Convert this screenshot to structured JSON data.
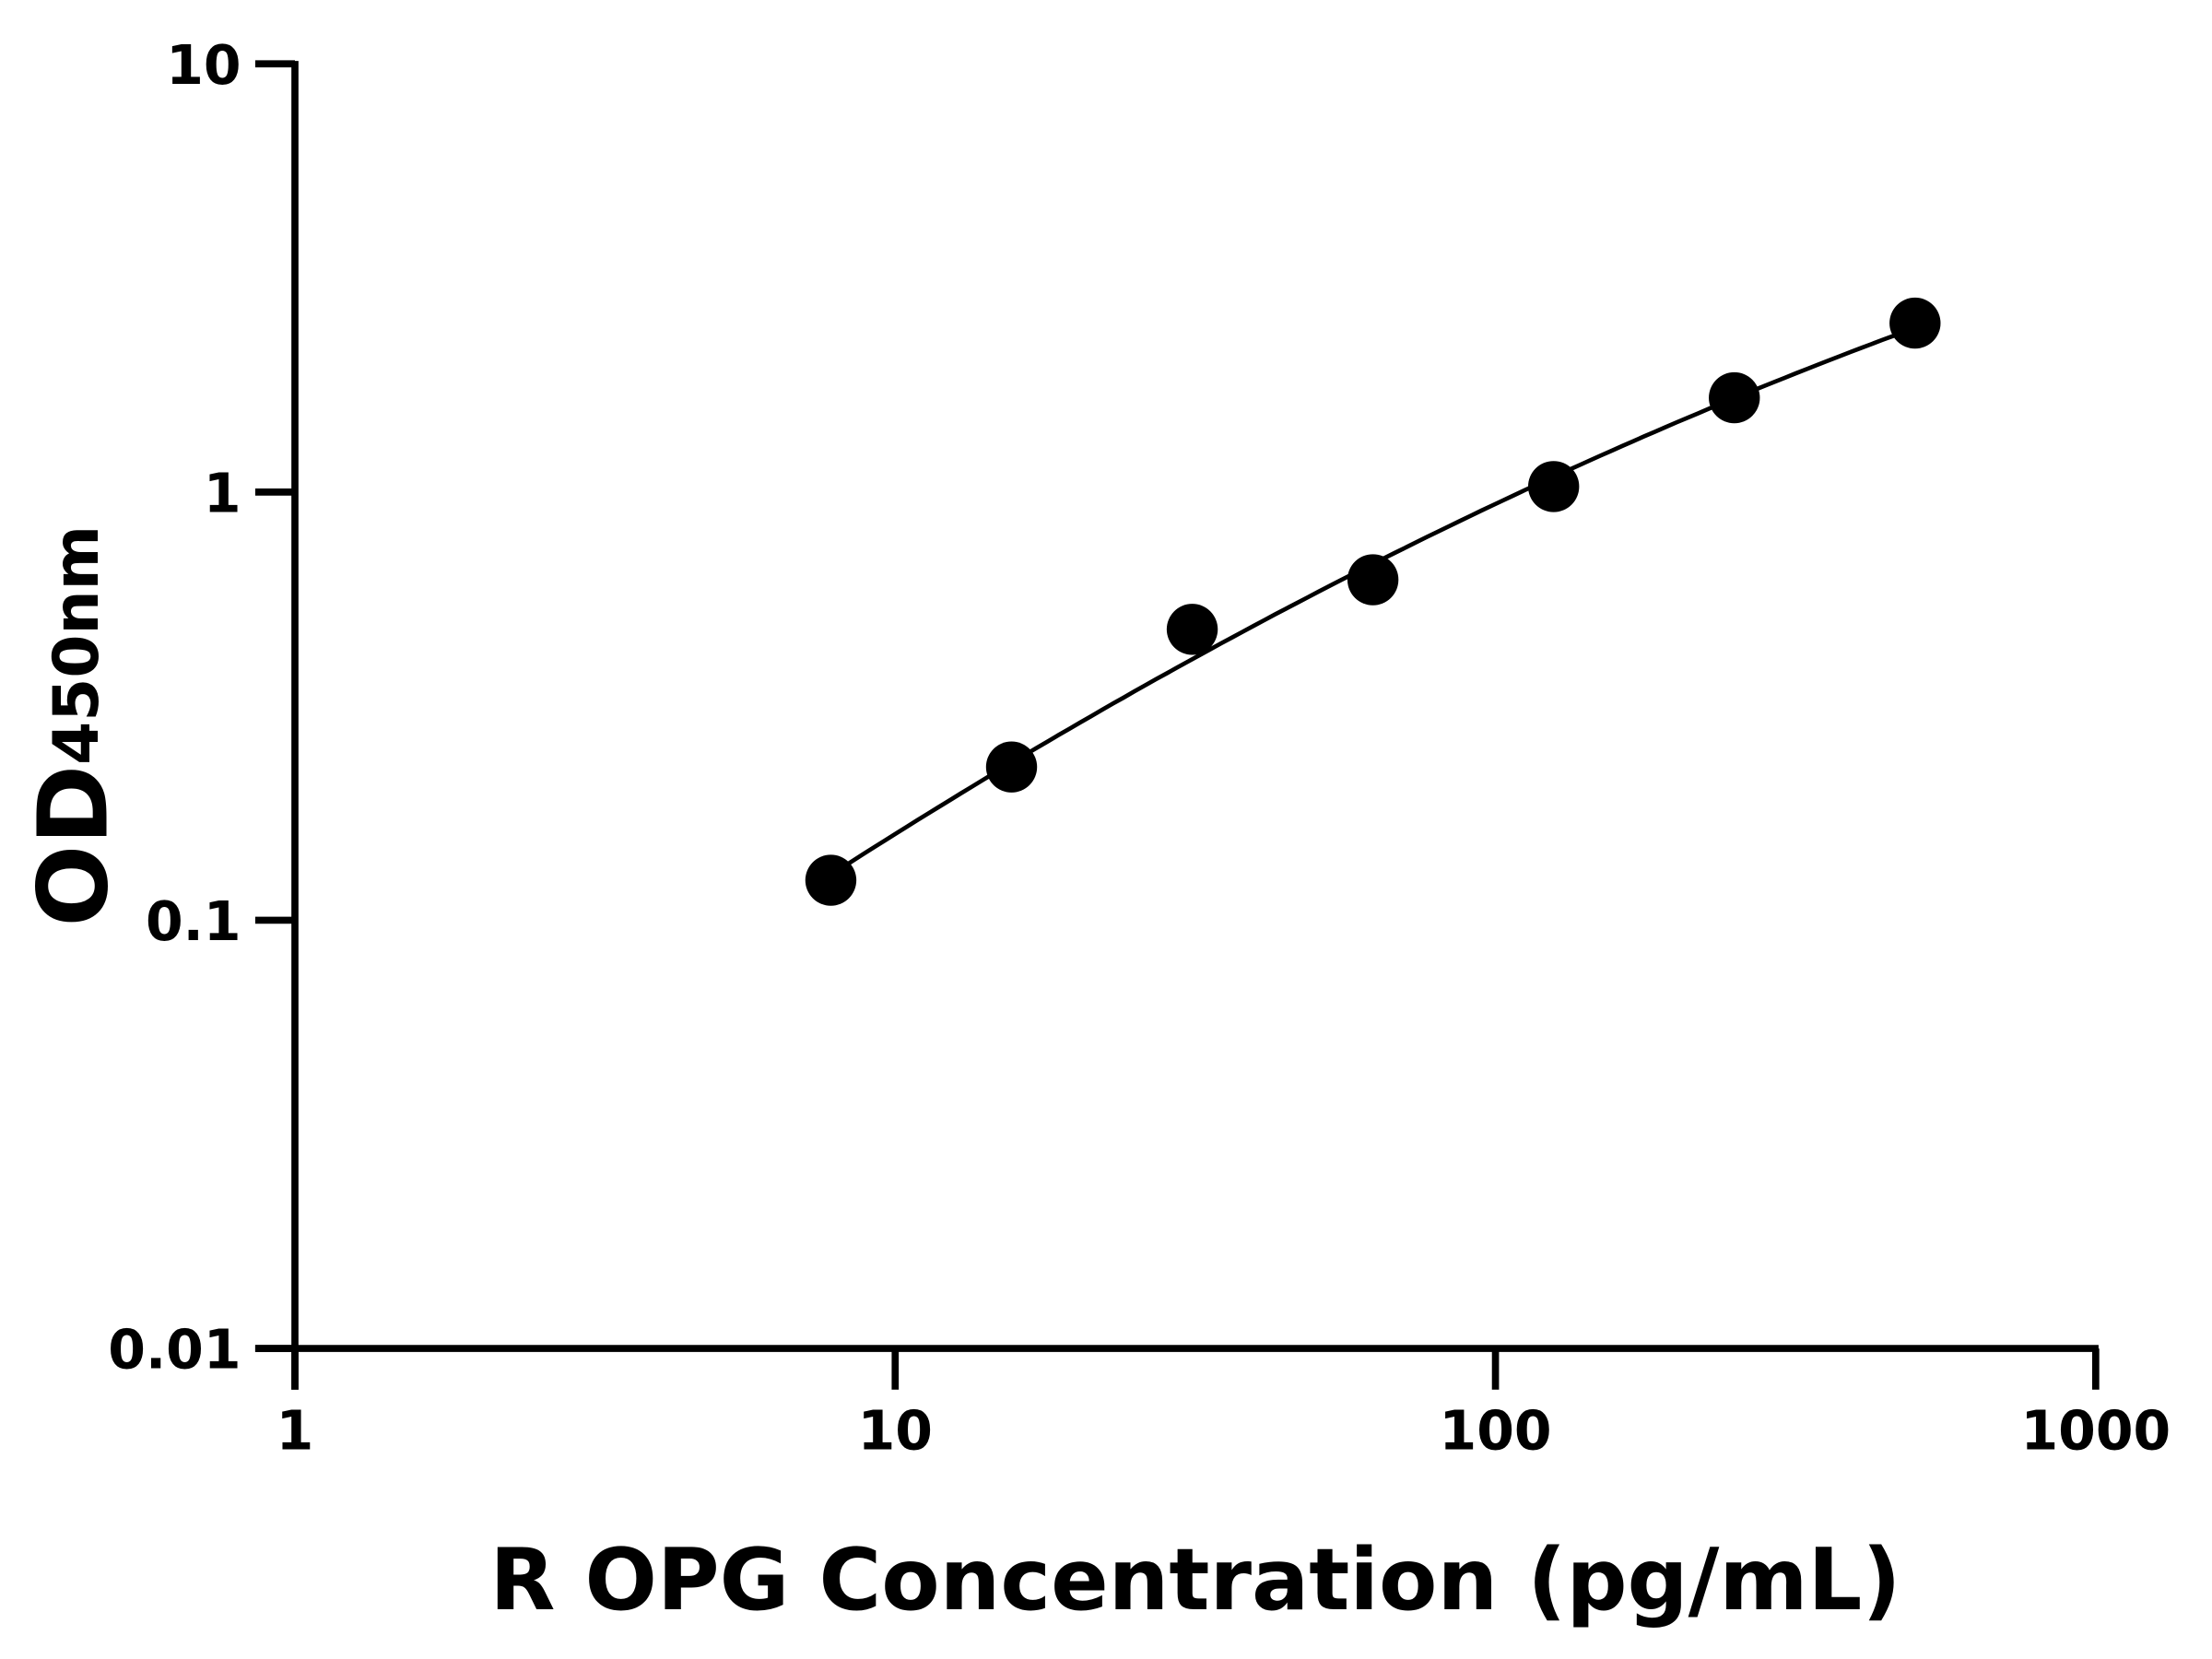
{
  "chart_data": {
    "type": "scatter",
    "title": "",
    "xlabel": "R OPG Concentration (pg/mL)",
    "ylabel": {
      "main": "OD",
      "subscript": "450nm"
    },
    "xscale": "log",
    "yscale": "log",
    "xlim": [
      1,
      1000
    ],
    "ylim": [
      0.01,
      10
    ],
    "xticks": [
      "1",
      "10",
      "100",
      "1000"
    ],
    "yticks": [
      "0.01",
      "0.1",
      "1",
      "10"
    ],
    "grid": false,
    "legend": "none",
    "fit_curve": true,
    "color": "#000000",
    "points": [
      {
        "x": 7.8125,
        "y": 0.124
      },
      {
        "x": 15.625,
        "y": 0.228
      },
      {
        "x": 31.25,
        "y": 0.478
      },
      {
        "x": 62.5,
        "y": 0.624
      },
      {
        "x": 125,
        "y": 1.03
      },
      {
        "x": 250,
        "y": 1.66
      },
      {
        "x": 500,
        "y": 2.48
      }
    ]
  }
}
